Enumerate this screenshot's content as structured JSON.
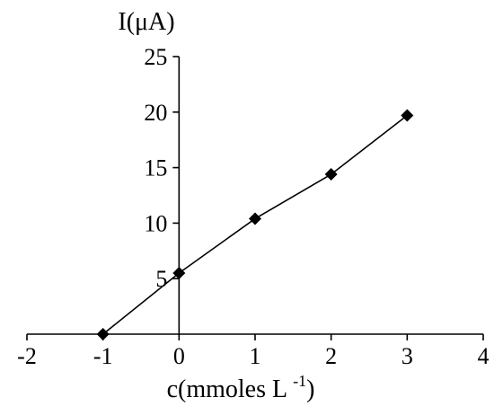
{
  "chart_data": {
    "type": "line",
    "title": "",
    "xlabel": "c(mmoles L",
    "xlabel_superscript": "-1",
    "xlabel_suffix": ")",
    "ylabel": "I(μA)",
    "xlim": [
      -2,
      4
    ],
    "ylim": [
      0,
      25
    ],
    "x_ticks": [
      -2,
      -1,
      0,
      1,
      2,
      3,
      4
    ],
    "x_tick_labels": [
      "-2",
      "-1",
      "0",
      "1",
      "2",
      "3",
      "4"
    ],
    "y_ticks": [
      5,
      10,
      15,
      20,
      25
    ],
    "y_tick_labels": [
      "5",
      "10",
      "15",
      "20",
      "25"
    ],
    "grid": false,
    "legend": "none",
    "marker": "diamond",
    "line_color": "#000000",
    "marker_color": "#000000",
    "series": [
      {
        "x": [
          -1,
          0,
          1,
          2,
          3
        ],
        "y": [
          0,
          5.5,
          10.4,
          14.4,
          19.7
        ]
      }
    ]
  }
}
